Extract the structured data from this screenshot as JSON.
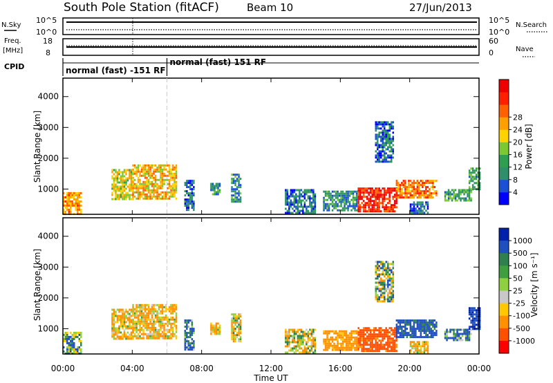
{
  "header": {
    "station": "South Pole Station (fitACF)",
    "beam": "Beam 10",
    "date": "27/Jun/2013"
  },
  "strips": {
    "nsky_label": "N.Sky",
    "nsearch_label": "N.Search",
    "freq_label_1": "Freq.",
    "freq_label_2": "[MHz]",
    "nave_label": "Nave",
    "cpid_label": "CPID",
    "left_ticks_top": [
      "10^5",
      "10^0"
    ],
    "right_ticks_top": [
      "10^5",
      "10^0"
    ],
    "left_ticks_freq": [
      "18",
      "8"
    ],
    "right_ticks_nave": [
      "60",
      "0"
    ],
    "cpid_segments": [
      {
        "label": "normal (fast) -151 RF",
        "start_hour": 0.0,
        "end_hour": 6.0
      },
      {
        "label": "normal (fast) 151 RF",
        "start_hour": 6.0,
        "end_hour": 24.0
      }
    ]
  },
  "colors": {
    "power_scale": [
      "#0000ff",
      "#1a4fd6",
      "#2f8f6a",
      "#2e9f50",
      "#7cc832",
      "#ffd200",
      "#ffa000",
      "#ff6000",
      "#ff2000",
      "#ee0000"
    ],
    "velocity_scale": [
      "#0022aa",
      "#1f4fbf",
      "#2f7f4f",
      "#3f9f3f",
      "#8fd040",
      "#c8c8c8",
      "#ffc800",
      "#ff9000",
      "#ff5000",
      "#ff0000"
    ]
  },
  "chart_data": [
    {
      "type": "heatmap",
      "title": "",
      "xlabel": "",
      "ylabel": "Slant Range [km]",
      "xlim": [
        0,
        24
      ],
      "ylim": [
        180,
        4600
      ],
      "x_tick_labels": [
        "00:00",
        "04:00",
        "08:00",
        "12:00",
        "16:00",
        "20:00",
        "00:00"
      ],
      "y_ticks": [
        1000,
        2000,
        3000,
        4000
      ],
      "colorbar": {
        "label": "Power [dB]",
        "ticks": [
          "4",
          "8",
          "12",
          "16",
          "20",
          "24",
          "28"
        ],
        "range": [
          0,
          30
        ]
      },
      "regions": [
        {
          "t0": 0.0,
          "t1": 1.0,
          "r0": 200,
          "r1": 900,
          "level": 20
        },
        {
          "t0": 2.8,
          "t1": 4.0,
          "r0": 700,
          "r1": 1650,
          "level": 16
        },
        {
          "t0": 4.0,
          "t1": 6.5,
          "r0": 700,
          "r1": 1800,
          "level": 18
        },
        {
          "t0": 7.0,
          "t1": 7.5,
          "r0": 300,
          "r1": 1300,
          "level": 6
        },
        {
          "t0": 8.5,
          "t1": 9.0,
          "r0": 800,
          "r1": 1200,
          "level": 8
        },
        {
          "t0": 9.7,
          "t1": 10.2,
          "r0": 600,
          "r1": 1500,
          "level": 8
        },
        {
          "t0": 12.8,
          "t1": 14.5,
          "r0": 250,
          "r1": 1000,
          "level": 6
        },
        {
          "t0": 15.0,
          "t1": 17.0,
          "r0": 300,
          "r1": 950,
          "level": 8
        },
        {
          "t0": 17.0,
          "t1": 19.2,
          "r0": 300,
          "r1": 1050,
          "level": 26
        },
        {
          "t0": 18.0,
          "t1": 19.0,
          "r0": 1900,
          "r1": 3200,
          "level": 6
        },
        {
          "t0": 19.2,
          "t1": 21.5,
          "r0": 700,
          "r1": 1300,
          "level": 22
        },
        {
          "t0": 20.0,
          "t1": 21.0,
          "r0": 250,
          "r1": 600,
          "level": 6
        },
        {
          "t0": 22.0,
          "t1": 23.5,
          "r0": 600,
          "r1": 1000,
          "level": 10
        },
        {
          "t0": 23.4,
          "t1": 24.0,
          "r0": 1000,
          "r1": 1700,
          "level": 10
        }
      ]
    },
    {
      "type": "heatmap",
      "title": "",
      "xlabel": "Time UT",
      "ylabel": "Slant Range [km]",
      "xlim": [
        0,
        24
      ],
      "ylim": [
        180,
        4600
      ],
      "x_tick_labels": [
        "00:00",
        "04:00",
        "08:00",
        "12:00",
        "16:00",
        "20:00",
        "00:00"
      ],
      "y_ticks": [
        1000,
        2000,
        3000,
        4000
      ],
      "colorbar": {
        "label": "Velocity [m s⁻¹]",
        "ticks": [
          "1000",
          "500",
          "100",
          "50",
          "25",
          "-25",
          "-100",
          "-500",
          "-1000"
        ],
        "range": [
          -1000,
          1000
        ]
      },
      "regions": [
        {
          "t0": 0.0,
          "t1": 1.0,
          "r0": 200,
          "r1": 900,
          "level": 50
        },
        {
          "t0": 2.8,
          "t1": 4.0,
          "r0": 700,
          "r1": 1650,
          "level": -100
        },
        {
          "t0": 4.0,
          "t1": 6.5,
          "r0": 700,
          "r1": 1800,
          "level": -100
        },
        {
          "t0": 7.0,
          "t1": 7.5,
          "r0": 300,
          "r1": 1300,
          "level": 100
        },
        {
          "t0": 8.5,
          "t1": 9.0,
          "r0": 800,
          "r1": 1200,
          "level": -100
        },
        {
          "t0": 9.7,
          "t1": 10.2,
          "r0": 600,
          "r1": 1500,
          "level": -50
        },
        {
          "t0": 12.8,
          "t1": 14.5,
          "r0": 250,
          "r1": 1000,
          "level": -50
        },
        {
          "t0": 15.0,
          "t1": 17.0,
          "r0": 300,
          "r1": 950,
          "level": -200
        },
        {
          "t0": 17.0,
          "t1": 19.2,
          "r0": 300,
          "r1": 1050,
          "level": -600
        },
        {
          "t0": 18.0,
          "t1": 19.0,
          "r0": 1900,
          "r1": 3200,
          "level": 10
        },
        {
          "t0": 19.2,
          "t1": 21.5,
          "r0": 700,
          "r1": 1300,
          "level": 200
        },
        {
          "t0": 20.0,
          "t1": 21.0,
          "r0": 250,
          "r1": 600,
          "level": -100
        },
        {
          "t0": 22.0,
          "t1": 23.5,
          "r0": 600,
          "r1": 1000,
          "level": 100
        },
        {
          "t0": 23.4,
          "t1": 24.0,
          "r0": 1000,
          "r1": 1700,
          "level": 500
        }
      ]
    }
  ]
}
